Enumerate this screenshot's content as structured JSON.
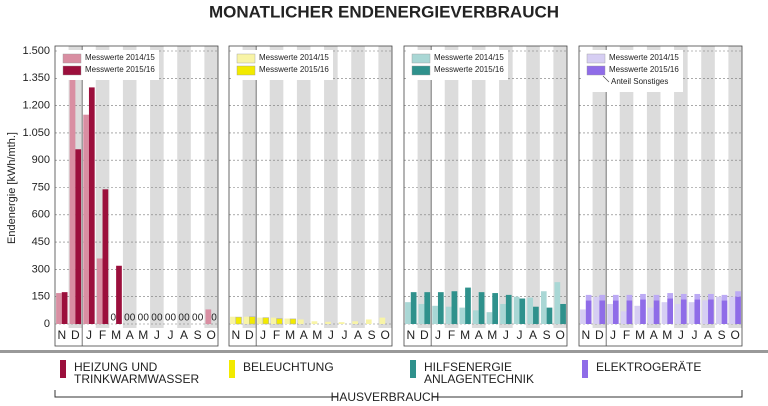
{
  "title": "MONATLICHER ENDENERGIEVERBRAUCH",
  "y_label": "Endenergie [kWh/mth.]",
  "chart_data": [
    {
      "type": "bar",
      "categories": [
        "N",
        "D",
        "J",
        "F",
        "M",
        "A",
        "M",
        "J",
        "J",
        "A",
        "S",
        "O"
      ],
      "ylim": [
        0,
        1500
      ],
      "yticks": [
        0,
        150,
        300,
        450,
        600,
        750,
        900,
        {
          "value": 1050,
          "label": "1.050"
        },
        {
          "value": 1200,
          "label": "1.200"
        },
        {
          "value": 1350,
          "label": "1.350"
        },
        {
          "value": 1500,
          "label": "1.500"
        }
      ],
      "grid": true,
      "series": [
        {
          "name": "Messwerte 2014/15",
          "color": "#d98ea2",
          "values": [
            170,
            1370,
            1150,
            360,
            0,
            0,
            0,
            0,
            0,
            0,
            0,
            80
          ]
        },
        {
          "name": "Messwerte 2015/16",
          "color": "#9b0f3c",
          "values": [
            175,
            960,
            1300,
            740,
            320,
            0,
            0,
            0,
            0,
            0,
            0,
            0
          ]
        }
      ]
    },
    {
      "type": "bar",
      "categories": [
        "N",
        "D",
        "J",
        "F",
        "M",
        "A",
        "M",
        "J",
        "J",
        "A",
        "S",
        "O"
      ],
      "series": [
        {
          "name": "Messwerte 2014/15",
          "color": "#f8f4a6",
          "values": [
            40,
            40,
            35,
            35,
            30,
            25,
            15,
            12,
            10,
            15,
            25,
            35
          ]
        },
        {
          "name": "Messwerte 2015/16",
          "color": "#f2ea00",
          "values": [
            38,
            40,
            35,
            30,
            28,
            null,
            null,
            null,
            null,
            null,
            null,
            null
          ]
        }
      ]
    },
    {
      "type": "bar",
      "categories": [
        "N",
        "D",
        "J",
        "F",
        "M",
        "A",
        "M",
        "J",
        "J",
        "A",
        "S",
        "O"
      ],
      "series": [
        {
          "name": "Messwerte 2014/15",
          "color": "#a9d7d5",
          "values": [
            120,
            110,
            100,
            95,
            90,
            75,
            65,
            110,
            150,
            145,
            180,
            230
          ]
        },
        {
          "name": "Messwerte 2015/16",
          "color": "#2f918c",
          "values": [
            175,
            175,
            175,
            180,
            200,
            175,
            170,
            160,
            140,
            95,
            90,
            110
          ]
        }
      ]
    },
    {
      "type": "bar",
      "categories": [
        "N",
        "D",
        "J",
        "F",
        "M",
        "A",
        "M",
        "J",
        "J",
        "A",
        "S",
        "O"
      ],
      "series": [
        {
          "name": "Messwerte 2014/15",
          "color": "#d6cef3",
          "values": [
            80,
            150,
            110,
            70,
            100,
            90,
            120,
            110,
            120,
            130,
            150,
            150
          ]
        },
        {
          "name": "Messwerte 2015/16",
          "color": "#8f6ce8",
          "values": [
            130,
            130,
            130,
            130,
            135,
            130,
            140,
            135,
            135,
            135,
            130,
            150
          ]
        },
        {
          "name": "Anteil Sonstiges",
          "color": "#bcaaf4",
          "values": [
            30,
            30,
            30,
            30,
            30,
            30,
            30,
            30,
            30,
            30,
            30,
            30
          ]
        }
      ]
    }
  ],
  "legend": [
    {
      "lines": [
        "HEIZUNG UND",
        "TRINKWARMWASSER"
      ],
      "color": "#9b0f3c"
    },
    {
      "lines": [
        "BELEUCHTUNG"
      ],
      "color": "#f2ea00"
    },
    {
      "lines": [
        "HILFSENERGIE",
        "ANLAGENTECHNIK"
      ],
      "color": "#2f918c"
    },
    {
      "lines": [
        "ELEKTROGERÄTE"
      ],
      "color": "#8f6ce8"
    }
  ],
  "footer": "HAUSVERBRAUCH"
}
